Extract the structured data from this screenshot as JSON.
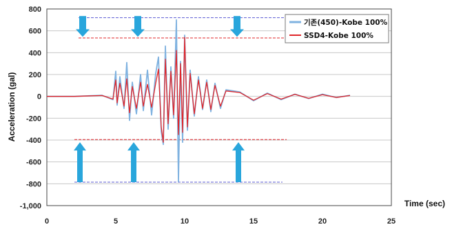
{
  "chart_data": {
    "type": "line",
    "title": "",
    "xlabel": "Time (sec)",
    "ylabel": "Acceleration (gal)",
    "xlim": [
      0,
      25
    ],
    "ylim": [
      -1000,
      800
    ],
    "x_ticks": [
      "0",
      "5",
      "10",
      "15",
      "20",
      "25"
    ],
    "y_ticks": [
      "800",
      "600",
      "400",
      "200",
      "0",
      "-200",
      "-400",
      "-600",
      "-800",
      "-1,000"
    ],
    "grid": "horizontal",
    "legend_position": "top-right",
    "series": [
      {
        "name": "기존(450)-Kobe 100%",
        "color": "#7fb2e0",
        "x": [
          0,
          2,
          4,
          4.8,
          5.0,
          5.1,
          5.3,
          5.6,
          5.8,
          6.0,
          6.2,
          6.5,
          6.8,
          7.0,
          7.3,
          7.6,
          7.9,
          8.1,
          8.3,
          8.45,
          8.6,
          8.8,
          9.0,
          9.2,
          9.4,
          9.55,
          9.7,
          9.85,
          10.0,
          10.2,
          10.4,
          10.7,
          11.0,
          11.3,
          11.6,
          11.9,
          12.2,
          12.6,
          13.0,
          14.0,
          15.0,
          16.0,
          17.0,
          18.0,
          19.0,
          20.0,
          21.0,
          22.0
        ],
        "y": [
          0,
          0,
          10,
          -30,
          230,
          -80,
          180,
          -110,
          310,
          -220,
          130,
          -160,
          200,
          -130,
          240,
          -170,
          210,
          360,
          -320,
          -440,
          460,
          -300,
          270,
          -200,
          700,
          -780,
          320,
          -420,
          560,
          -310,
          240,
          -180,
          180,
          -120,
          150,
          -140,
          120,
          -110,
          60,
          40,
          -40,
          30,
          -30,
          20,
          -20,
          20,
          -10,
          10
        ]
      },
      {
        "name": "SSD4-Kobe 100%",
        "color": "#e0262a",
        "x": [
          0,
          2,
          4,
          4.8,
          5.0,
          5.1,
          5.3,
          5.6,
          5.8,
          6.0,
          6.2,
          6.5,
          6.8,
          7.0,
          7.3,
          7.6,
          7.9,
          8.1,
          8.3,
          8.45,
          8.6,
          8.8,
          9.0,
          9.2,
          9.4,
          9.55,
          9.7,
          9.85,
          10.0,
          10.2,
          10.4,
          10.7,
          11.0,
          11.3,
          11.6,
          11.9,
          12.2,
          12.6,
          13.0,
          14.0,
          15.0,
          16.0,
          17.0,
          18.0,
          19.0,
          20.0,
          21.0,
          22.0
        ],
        "y": [
          0,
          0,
          8,
          -25,
          150,
          -60,
          120,
          -90,
          160,
          -150,
          90,
          -110,
          130,
          -90,
          110,
          -100,
          120,
          250,
          -280,
          -420,
          340,
          -250,
          230,
          -170,
          420,
          -350,
          300,
          -330,
          540,
          -280,
          210,
          -160,
          150,
          -110,
          130,
          -120,
          100,
          -90,
          50,
          35,
          -35,
          25,
          -25,
          18,
          -18,
          15,
          -10,
          8
        ]
      }
    ],
    "reference_lines": [
      {
        "y": 720,
        "color": "#5a5ad2",
        "style": "dashed"
      },
      {
        "y": 535,
        "color": "#e0262a",
        "style": "dashed"
      },
      {
        "y": -395,
        "color": "#e0262a",
        "style": "dashed"
      },
      {
        "y": -785,
        "color": "#5a5ad2",
        "style": "dashed"
      }
    ],
    "arrows": [
      {
        "x": 2.6,
        "direction": "down"
      },
      {
        "x": 6.6,
        "direction": "down"
      },
      {
        "x": 13.8,
        "direction": "down"
      },
      {
        "x": 2.4,
        "direction": "up"
      },
      {
        "x": 6.3,
        "direction": "up"
      },
      {
        "x": 13.9,
        "direction": "up"
      }
    ],
    "arrow_color": "#29a6dc"
  }
}
